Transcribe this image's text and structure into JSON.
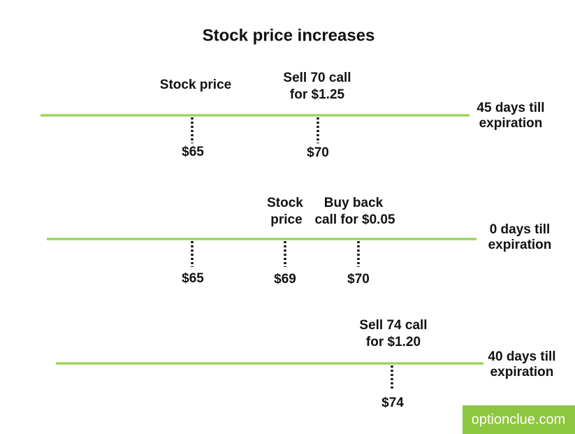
{
  "title": "Stock price increases",
  "timelines": [
    {
      "side_label": [
        "45 days till",
        "expiration"
      ],
      "annotations": [
        [
          "Stock price"
        ],
        [
          "Sell 70 call",
          "for $1.25"
        ]
      ],
      "ticks": [
        "$65",
        "$70"
      ]
    },
    {
      "side_label": [
        "0 days till",
        "expiration"
      ],
      "annotations": [
        [
          "Stock",
          "price"
        ],
        [
          "Buy back",
          "call for $0.05"
        ]
      ],
      "ticks": [
        "$65",
        "$69",
        "$70"
      ]
    },
    {
      "side_label": [
        "40 days till",
        "expiration"
      ],
      "annotations": [
        [
          "Sell 74 call",
          "for $1.20"
        ]
      ],
      "ticks": [
        "$74"
      ]
    }
  ],
  "watermark": "optionclue.com"
}
